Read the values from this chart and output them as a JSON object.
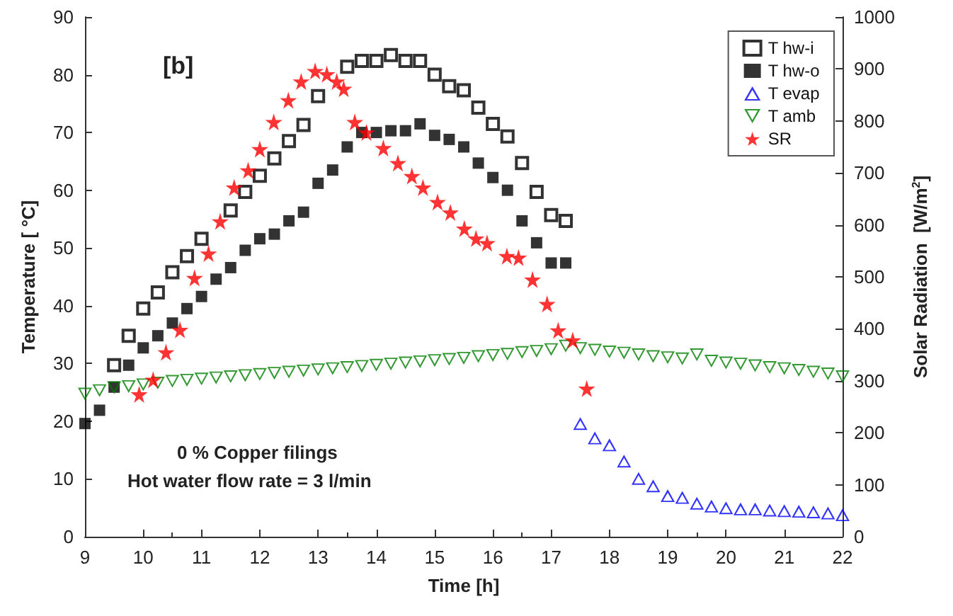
{
  "chart_data": {
    "type": "scatter",
    "xlabel": "Time [h]",
    "ylabel": "Temperature [ °C]",
    "y2label": "Solar Radiation  [W/m$^{2}$]",
    "xlim": [
      9,
      22
    ],
    "xticks": [
      9,
      10,
      11,
      12,
      13,
      14,
      15,
      16,
      17,
      18,
      19,
      20,
      21,
      22
    ],
    "ylim": [
      0,
      90
    ],
    "yticks": [
      0,
      10,
      20,
      30,
      40,
      50,
      60,
      70,
      80,
      90
    ],
    "y2lim": [
      0,
      1000
    ],
    "y2ticks": [
      0,
      100,
      200,
      300,
      400,
      500,
      600,
      700,
      800,
      900,
      1000
    ],
    "grid": false,
    "legend": "top right",
    "annotations": [
      "[b]",
      "0 % Copper filings",
      "Hot water flow rate = 3 l/min"
    ],
    "series": [
      {
        "name": "T hw-i",
        "color": "#000000",
        "marker": "square-open",
        "x": [
          9.5,
          9.75,
          10,
          10.25,
          10.5,
          10.75,
          11,
          11.5,
          11.75,
          12,
          12.25,
          12.5,
          12.75,
          13,
          13.5,
          13.75,
          14,
          14.25,
          14.5,
          14.75,
          15,
          15.25,
          15.5,
          15.75,
          16,
          16.25,
          16.5,
          16.75,
          17,
          17.25
        ],
        "values": [
          29.7,
          34.8,
          39.5,
          42.3,
          45.8,
          48.6,
          51.6,
          56.5,
          59.7,
          62.5,
          65.5,
          68.5,
          71.3,
          76.3,
          81.4,
          82.4,
          82.4,
          83.4,
          82.4,
          82.4,
          80,
          78,
          77.3,
          74.3,
          71.5,
          69.3,
          64.7,
          59.7,
          55.7,
          54.7
        ]
      },
      {
        "name": "T hw-o",
        "color": "#000000",
        "marker": "square",
        "x": [
          9,
          9.25,
          9.5,
          9.75,
          10,
          10.25,
          10.5,
          10.75,
          11,
          11.25,
          11.5,
          11.75,
          12,
          12.25,
          12.5,
          12.75,
          13,
          13.25,
          13.5,
          13.75,
          14,
          14.25,
          14.5,
          14.75,
          15,
          15.25,
          15.5,
          15.75,
          16,
          16.25,
          16.5,
          16.75,
          17,
          17.25
        ],
        "values": [
          19.6,
          21.9,
          25.9,
          29.7,
          32.7,
          34.8,
          37,
          39.5,
          41.6,
          44.6,
          46.6,
          49.6,
          51.6,
          52.4,
          54.7,
          56.2,
          61.2,
          63.5,
          67.5,
          70,
          70,
          70.3,
          70.3,
          71.5,
          69.5,
          68.8,
          67.5,
          64.7,
          62.2,
          60,
          54.7,
          50.9,
          47.4,
          47.4
        ]
      },
      {
        "name": "T evap",
        "color": "#0000ff",
        "marker": "triangle-open",
        "x": [
          17.5,
          17.75,
          18,
          18.25,
          18.5,
          18.75,
          19,
          19.25,
          19.5,
          19.75,
          20,
          20.25,
          20.5,
          20.75,
          21,
          21.25,
          21.5,
          21.75,
          22
        ],
        "values": [
          19.6,
          17.1,
          15.9,
          13.1,
          10.1,
          8.8,
          7.1,
          6.8,
          5.8,
          5.3,
          5,
          4.8,
          4.8,
          4.6,
          4.5,
          4.4,
          4.3,
          4.1,
          3.8
        ]
      },
      {
        "name": "T amb",
        "color": "#008000",
        "marker": "triangle-down-open",
        "x": [
          9,
          9.25,
          9.5,
          9.75,
          10,
          10.25,
          10.5,
          10.75,
          11,
          11.25,
          11.5,
          11.75,
          12,
          12.25,
          12.5,
          12.75,
          13,
          13.25,
          13.5,
          13.75,
          14,
          14.25,
          14.5,
          14.75,
          15,
          15.25,
          15.5,
          15.75,
          16,
          16.25,
          16.5,
          16.75,
          17,
          17.25,
          17.5,
          17.75,
          18,
          18.25,
          18.5,
          18.75,
          19,
          19.25,
          19.5,
          19.75,
          20,
          20.25,
          20.5,
          20.75,
          21,
          21.25,
          21.5,
          21.75,
          22
        ],
        "values": [
          24.7,
          25.3,
          25.8,
          26,
          26.3,
          26.6,
          26.9,
          27.1,
          27.3,
          27.5,
          27.7,
          27.9,
          28.1,
          28.3,
          28.5,
          28.7,
          28.9,
          29.1,
          29.3,
          29.5,
          29.7,
          29.9,
          30.1,
          30.3,
          30.5,
          30.7,
          30.9,
          31.2,
          31.4,
          31.6,
          31.9,
          32.1,
          32.4,
          33,
          32.6,
          32.3,
          32,
          31.8,
          31.5,
          31.2,
          31,
          30.8,
          31.5,
          30.4,
          30.1,
          29.9,
          29.6,
          29.3,
          29.1,
          28.8,
          28.5,
          28.2,
          27.7
        ]
      },
      {
        "name": "SR",
        "color": "#ff0000",
        "marker": "star",
        "axis": "y2",
        "x": [
          9.93,
          10.17,
          10.39,
          10.63,
          10.88,
          11.12,
          11.32,
          11.56,
          11.8,
          12,
          12.24,
          12.49,
          12.71,
          12.95,
          13.15,
          13.32,
          13.44,
          13.63,
          13.83,
          14.12,
          14.37,
          14.61,
          14.8,
          15.05,
          15.27,
          15.51,
          15.71,
          15.9,
          16.24,
          16.44,
          16.68,
          16.93,
          17.12,
          17.37,
          17.61
        ],
        "values": [
          274,
          302,
          355,
          398,
          498,
          545,
          607,
          672,
          705,
          746,
          798,
          840,
          876,
          896,
          890,
          876,
          862,
          798,
          778,
          748,
          719,
          694,
          672,
          644,
          624,
          593,
          574,
          565,
          540,
          537,
          495,
          448,
          397,
          378,
          285
        ]
      }
    ]
  }
}
